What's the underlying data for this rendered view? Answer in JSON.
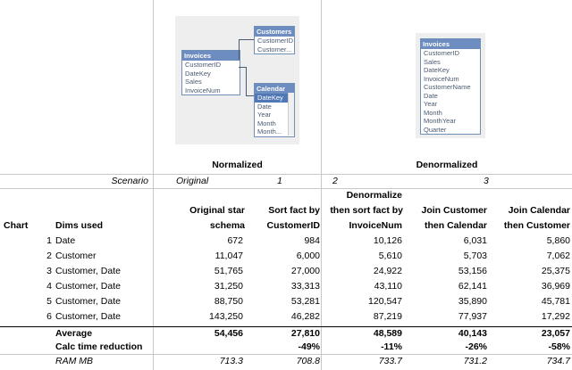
{
  "diagrams": {
    "normalized": {
      "invoices": {
        "title": "Invoices",
        "fields": [
          "CustomerID",
          "DateKey",
          "Sales",
          "InvoiceNum"
        ]
      },
      "customers": {
        "title": "Customers",
        "fields": [
          "CustomerID",
          "Customer..."
        ]
      },
      "calendar": {
        "title": "Calendar",
        "fields": [
          "DateKey",
          "Date",
          "Year",
          "Month",
          "Month..."
        ]
      }
    },
    "denormalized": {
      "invoices": {
        "title": "Invoices",
        "fields": [
          "CustomerID",
          "Sales",
          "DateKey",
          "InvoiceNum",
          "CustomerName",
          "Date",
          "Year",
          "Month",
          "MonthYear",
          "Quarter"
        ]
      }
    }
  },
  "groups": {
    "normalized": "Normalized",
    "denormalized": "Denormalized"
  },
  "scenario": {
    "label": "Scenario",
    "original": "Original",
    "s1": "1",
    "s2": "2",
    "s3": "3"
  },
  "headers": {
    "chart": "Chart",
    "dims": "Dims used",
    "col1": [
      "Original star",
      "schema"
    ],
    "col2": [
      "Sort fact by",
      "CustomerID"
    ],
    "col3": [
      "Denormalize",
      "then sort fact by",
      "InvoiceNum"
    ],
    "col4": [
      "Join Customer",
      "then Calendar"
    ],
    "col5": [
      "Join Calendar",
      "then Customer"
    ]
  },
  "rows": [
    {
      "chart": "1",
      "dims": "Date",
      "values": [
        "672",
        "984",
        "10,126",
        "6,031",
        "5,860"
      ]
    },
    {
      "chart": "2",
      "dims": "Customer",
      "values": [
        "11,047",
        "6,000",
        "5,610",
        "5,703",
        "7,062"
      ]
    },
    {
      "chart": "3",
      "dims": "Customer, Date",
      "values": [
        "51,765",
        "27,000",
        "24,922",
        "53,156",
        "25,375"
      ]
    },
    {
      "chart": "4",
      "dims": "Customer, Date",
      "values": [
        "31,250",
        "33,313",
        "43,110",
        "62,141",
        "36,969"
      ]
    },
    {
      "chart": "5",
      "dims": "Customer, Date",
      "values": [
        "88,750",
        "53,281",
        "120,547",
        "35,890",
        "45,781"
      ]
    },
    {
      "chart": "6",
      "dims": "Customer, Date",
      "values": [
        "143,250",
        "46,282",
        "87,219",
        "77,937",
        "17,292"
      ]
    }
  ],
  "average": {
    "label": "Average",
    "values": [
      "54,456",
      "27,810",
      "48,589",
      "40,143",
      "23,057"
    ]
  },
  "calc": {
    "label": "Calc time reduction",
    "values": [
      "",
      "-49%",
      "-11%",
      "-26%",
      "-58%"
    ]
  },
  "ram": {
    "label": "RAM MB",
    "values": [
      "713.3",
      "708.8",
      "733.7",
      "731.2",
      "734.7"
    ]
  }
}
